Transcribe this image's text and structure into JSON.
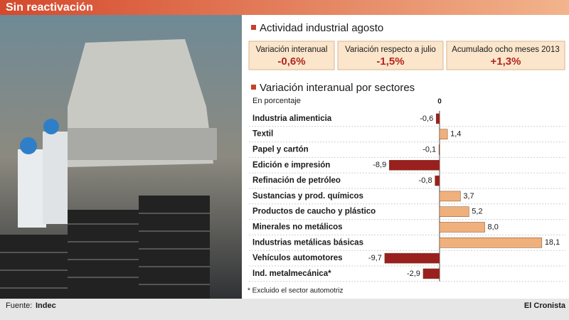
{
  "header": {
    "title": "Sin reactivación"
  },
  "summary": {
    "title": "Actividad industrial agosto",
    "kpis": [
      {
        "label": "Variación interanual",
        "value": "-0,6%"
      },
      {
        "label": "Variación respecto a julio",
        "value": "-1,5%"
      },
      {
        "label": "Acumulado ocho meses 2013",
        "value": "+1,3%"
      }
    ]
  },
  "chart_data": {
    "type": "hbar",
    "title": "Variación interanual por sectores",
    "subtitle": "En porcentaje",
    "categories": [
      "Industria alimenticia",
      "Textil",
      "Papel y cartón",
      "Edición e impresión",
      "Refinación de petróleo",
      "Sustancias y prod. químicos",
      "Productos de caucho y plástico",
      "Minerales no metálicos",
      "Industrias metálicas básicas",
      "Vehículos automotores",
      "Ind. metalmecánica*"
    ],
    "values": [
      -0.6,
      1.4,
      -0.1,
      -8.9,
      -0.8,
      3.7,
      5.2,
      8.0,
      18.1,
      -9.7,
      -2.9
    ],
    "value_labels": [
      "-0,6",
      "1,4",
      "-0,1",
      "-8,9",
      "-0,8",
      "3,7",
      "5,2",
      "8,0",
      "18,1",
      "-9,7",
      "-2,9"
    ],
    "positive_color": "#efb07c",
    "negative_color": "#9a1f1f",
    "xlim": [
      -10,
      18.5
    ],
    "xticks": [
      0
    ],
    "note": "* Excluido el sector automotriz"
  },
  "footer": {
    "source_label": "Fuente:",
    "source": "Indec",
    "brand": "El Cronista"
  }
}
